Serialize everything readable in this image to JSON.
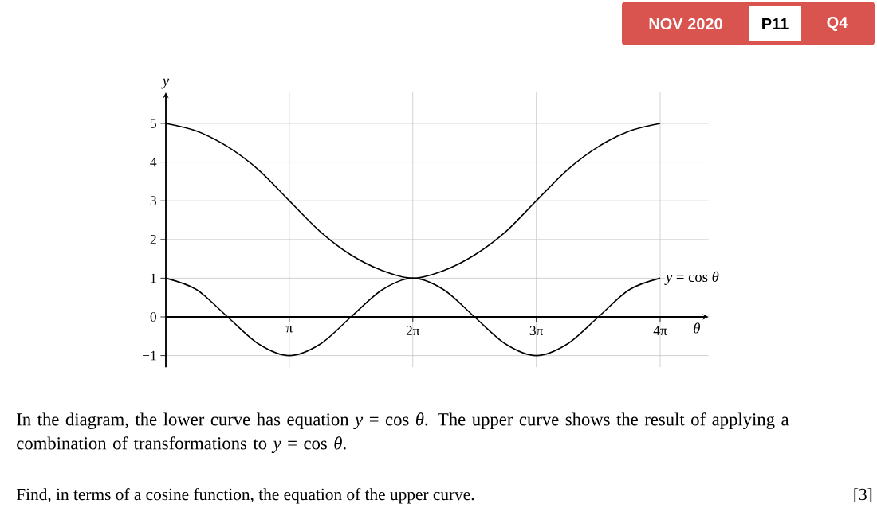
{
  "chart_data": {
    "type": "line",
    "xlabel": "θ",
    "ylabel": "y",
    "x": [
      0,
      0.79,
      1.57,
      2.36,
      3.14,
      3.93,
      4.71,
      5.5,
      6.28,
      7.07,
      7.85,
      8.64,
      9.42,
      10.21,
      11.0,
      11.78,
      12.57
    ],
    "series": [
      {
        "color": "#000000",
        "values": [
          5,
          4.8,
          4.4,
          3.8,
          3,
          2.2,
          1.6,
          1.2,
          1,
          1.2,
          1.6,
          2.2,
          3,
          3.8,
          4.4,
          4.8,
          5
        ]
      },
      {
        "name": "*y* = cos *θ*",
        "color": "#000000",
        "values": [
          1,
          0.7,
          0,
          -0.7,
          -1,
          -0.7,
          0,
          0.7,
          1,
          0.7,
          0,
          -0.7,
          -1,
          -0.7,
          0,
          0.7,
          1
        ]
      }
    ],
    "xlim": [
      0,
      13.8
    ],
    "ylim": [
      -1.3,
      5.8
    ],
    "xticks": [
      {
        "value": 3.14,
        "label": "π"
      },
      {
        "value": 6.28,
        "label": "2π"
      },
      {
        "value": 9.42,
        "label": "3π"
      },
      {
        "value": 12.57,
        "label": "4π"
      }
    ],
    "yticks": [
      {
        "value": -1,
        "label": "−1"
      },
      0,
      1,
      2,
      3,
      4,
      5
    ],
    "grid": true,
    "marker": "none",
    "annotations": [
      "NOV 2020",
      "P11",
      "Q4",
      "In the diagram, the lower curve has equation *y* = cos *θ*. The upper curve shows the result of applying a combination of transformations to *y* = cos *θ*.",
      "Find, in terms of a cosine function, the equation of the upper curve.",
      "[3]"
    ]
  }
}
